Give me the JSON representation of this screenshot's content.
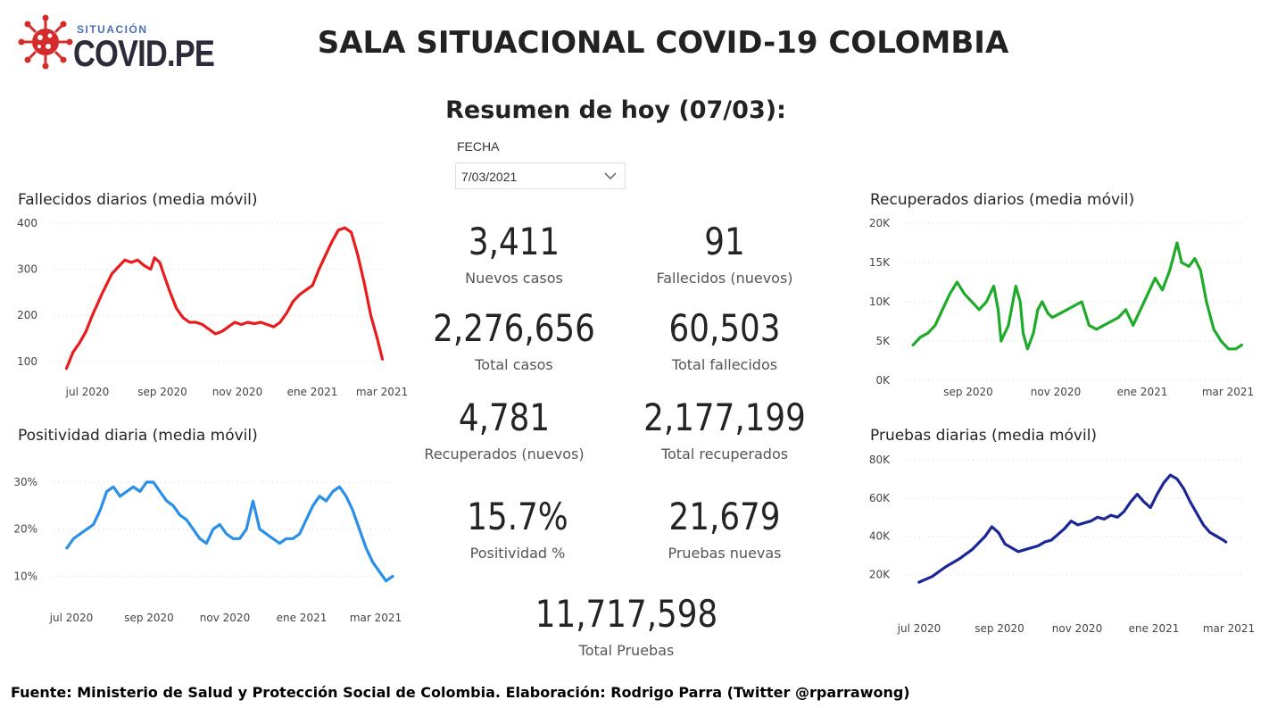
{
  "logo": {
    "sub": "SITUACIÓN",
    "main": "COVID.PE"
  },
  "header": {
    "title": "SALA SITUACIONAL COVID-19 COLOMBIA",
    "subtitle": "Resumen de hoy (07/03):"
  },
  "filter": {
    "label": "FECHA",
    "value": "7/03/2021"
  },
  "kpis": [
    {
      "value": "3,411",
      "label": "Nuevos casos"
    },
    {
      "value": "91",
      "label": "Fallecidos (nuevos)"
    },
    {
      "value": "2,276,656",
      "label": "Total casos"
    },
    {
      "value": "60,503",
      "label": "Total fallecidos"
    },
    {
      "value": "4,781",
      "label": "Recuperados (nuevos)"
    },
    {
      "value": "2,177,199",
      "label": "Total recuperados"
    },
    {
      "value": "15.7%",
      "label": "Positividad %"
    },
    {
      "value": "21,679",
      "label": "Pruebas nuevas"
    },
    {
      "value": "11,717,598",
      "label": "Total Pruebas"
    }
  ],
  "footer": "Fuente: Ministerio de Salud y Protección Social de Colombia. Elaboración: Rodrigo Parra (Twitter @rparrawong)",
  "colors": {
    "fallecidos": "#e81c1c",
    "positividad": "#2a8fe8",
    "recuperados": "#1faa2a",
    "pruebas": "#1b2796"
  },
  "chart_data": [
    {
      "type": "line",
      "title": "Fallecidos diarios (media móvil)",
      "color": "#e81c1c",
      "x_ticks": [
        "jul 2020",
        "sep 2020",
        "nov 2020",
        "ene 2021",
        "mar 2021"
      ],
      "y_ticks": [
        "100",
        "200",
        "300",
        "400"
      ],
      "y_tick_values": [
        100,
        200,
        300,
        400
      ],
      "ylim": [
        90,
        400
      ],
      "xlim": [
        -10,
        245
      ],
      "grid": true,
      "series": [
        {
          "values": [
            [
              0,
              85
            ],
            [
              5,
              120
            ],
            [
              10,
              140
            ],
            [
              15,
              165
            ],
            [
              20,
              200
            ],
            [
              28,
              250
            ],
            [
              35,
              290
            ],
            [
              40,
              305
            ],
            [
              45,
              320
            ],
            [
              50,
              315
            ],
            [
              55,
              320
            ],
            [
              60,
              308
            ],
            [
              65,
              300
            ],
            [
              68,
              325
            ],
            [
              72,
              315
            ],
            [
              75,
              290
            ],
            [
              80,
              250
            ],
            [
              85,
              215
            ],
            [
              90,
              195
            ],
            [
              95,
              185
            ],
            [
              100,
              185
            ],
            [
              105,
              180
            ],
            [
              110,
              170
            ],
            [
              115,
              160
            ],
            [
              120,
              165
            ],
            [
              125,
              175
            ],
            [
              130,
              185
            ],
            [
              135,
              180
            ],
            [
              140,
              185
            ],
            [
              145,
              182
            ],
            [
              150,
              185
            ],
            [
              155,
              180
            ],
            [
              160,
              175
            ],
            [
              165,
              185
            ],
            [
              170,
              205
            ],
            [
              175,
              230
            ],
            [
              180,
              245
            ],
            [
              185,
              255
            ],
            [
              190,
              265
            ],
            [
              195,
              300
            ],
            [
              200,
              330
            ],
            [
              205,
              360
            ],
            [
              210,
              385
            ],
            [
              215,
              390
            ],
            [
              220,
              380
            ],
            [
              225,
              330
            ],
            [
              230,
              270
            ],
            [
              235,
              200
            ],
            [
              240,
              150
            ],
            [
              244,
              105
            ]
          ]
        }
      ]
    },
    {
      "type": "line",
      "title": "Positividad diaria (media móvil)",
      "color": "#2a8fe8",
      "x_ticks": [
        "jul 2020",
        "sep 2020",
        "nov 2020",
        "ene 2021",
        "mar 2021"
      ],
      "y_ticks": [
        "10%",
        "20%",
        "30%"
      ],
      "y_tick_values": [
        10,
        20,
        30
      ],
      "ylim": [
        8,
        30
      ],
      "xlim": [
        -10,
        245
      ],
      "grid": true,
      "series": [
        {
          "values": [
            [
              0,
              16
            ],
            [
              5,
              18
            ],
            [
              10,
              19
            ],
            [
              15,
              20
            ],
            [
              20,
              21
            ],
            [
              25,
              24
            ],
            [
              30,
              28
            ],
            [
              35,
              29
            ],
            [
              40,
              27
            ],
            [
              45,
              28
            ],
            [
              50,
              29
            ],
            [
              55,
              28
            ],
            [
              60,
              30
            ],
            [
              65,
              30
            ],
            [
              70,
              28
            ],
            [
              75,
              26
            ],
            [
              80,
              25
            ],
            [
              85,
              23
            ],
            [
              90,
              22
            ],
            [
              95,
              20
            ],
            [
              100,
              18
            ],
            [
              105,
              17
            ],
            [
              110,
              20
            ],
            [
              115,
              21
            ],
            [
              120,
              19
            ],
            [
              125,
              18
            ],
            [
              130,
              18
            ],
            [
              135,
              20
            ],
            [
              140,
              26
            ],
            [
              145,
              20
            ],
            [
              150,
              19
            ],
            [
              155,
              18
            ],
            [
              160,
              17
            ],
            [
              165,
              18
            ],
            [
              170,
              18
            ],
            [
              175,
              19
            ],
            [
              180,
              22
            ],
            [
              185,
              25
            ],
            [
              190,
              27
            ],
            [
              195,
              26
            ],
            [
              200,
              28
            ],
            [
              205,
              29
            ],
            [
              210,
              27
            ],
            [
              215,
              24
            ],
            [
              220,
              20
            ],
            [
              225,
              16
            ],
            [
              230,
              13
            ],
            [
              235,
              11
            ],
            [
              240,
              9
            ],
            [
              245,
              10
            ]
          ]
        }
      ]
    },
    {
      "type": "line",
      "title": "Recuperados diarios (media móvil)",
      "color": "#1faa2a",
      "x_ticks": [
        "sep 2020",
        "nov 2020",
        "ene 2021",
        "mar 2021"
      ],
      "y_ticks": [
        "0K",
        "5K",
        "10K",
        "15K",
        "20K"
      ],
      "y_tick_values": [
        0,
        5,
        10,
        15,
        20
      ],
      "ylim": [
        0,
        20
      ],
      "xlim": [
        25,
        255
      ],
      "grid": true,
      "series": [
        {
          "values": [
            [
              30,
              4.5
            ],
            [
              35,
              5.5
            ],
            [
              40,
              6
            ],
            [
              45,
              7
            ],
            [
              50,
              9
            ],
            [
              55,
              11
            ],
            [
              60,
              12.5
            ],
            [
              65,
              11
            ],
            [
              70,
              10
            ],
            [
              75,
              9
            ],
            [
              80,
              10
            ],
            [
              85,
              12
            ],
            [
              88,
              9
            ],
            [
              90,
              5
            ],
            [
              95,
              7
            ],
            [
              100,
              12
            ],
            [
              103,
              10
            ],
            [
              105,
              6
            ],
            [
              108,
              4
            ],
            [
              112,
              6
            ],
            [
              115,
              9
            ],
            [
              118,
              10
            ],
            [
              122,
              8.5
            ],
            [
              125,
              8
            ],
            [
              130,
              8.5
            ],
            [
              135,
              9
            ],
            [
              140,
              9.5
            ],
            [
              145,
              10
            ],
            [
              150,
              7
            ],
            [
              155,
              6.5
            ],
            [
              160,
              7
            ],
            [
              165,
              7.5
            ],
            [
              170,
              8
            ],
            [
              175,
              9
            ],
            [
              180,
              7
            ],
            [
              185,
              9
            ],
            [
              190,
              11
            ],
            [
              195,
              13
            ],
            [
              200,
              11.5
            ],
            [
              205,
              14
            ],
            [
              210,
              17.5
            ],
            [
              213,
              15
            ],
            [
              218,
              14.5
            ],
            [
              222,
              15.5
            ],
            [
              226,
              14
            ],
            [
              230,
              10
            ],
            [
              235,
              6.5
            ],
            [
              240,
              5
            ],
            [
              245,
              4
            ],
            [
              250,
              4
            ],
            [
              254,
              4.5
            ]
          ]
        }
      ]
    },
    {
      "type": "line",
      "title": "Pruebas diarias (media móvil)",
      "color": "#1b2796",
      "x_ticks": [
        "jul 2020",
        "sep 2020",
        "nov 2020",
        "ene 2021",
        "mar 2021"
      ],
      "y_ticks": [
        "20K",
        "40K",
        "60K",
        "80K"
      ],
      "y_tick_values": [
        20,
        40,
        60,
        80
      ],
      "ylim": [
        10,
        80
      ],
      "xlim": [
        -10,
        245
      ],
      "grid": true,
      "series": [
        {
          "values": [
            [
              0,
              16
            ],
            [
              10,
              19
            ],
            [
              20,
              24
            ],
            [
              30,
              28
            ],
            [
              40,
              33
            ],
            [
              50,
              40
            ],
            [
              55,
              45
            ],
            [
              60,
              42
            ],
            [
              65,
              36
            ],
            [
              70,
              34
            ],
            [
              75,
              32
            ],
            [
              80,
              33
            ],
            [
              85,
              34
            ],
            [
              90,
              35
            ],
            [
              95,
              37
            ],
            [
              100,
              38
            ],
            [
              105,
              41
            ],
            [
              110,
              44
            ],
            [
              115,
              48
            ],
            [
              120,
              46
            ],
            [
              125,
              47
            ],
            [
              130,
              48
            ],
            [
              135,
              50
            ],
            [
              140,
              49
            ],
            [
              145,
              51
            ],
            [
              150,
              50
            ],
            [
              155,
              53
            ],
            [
              160,
              58
            ],
            [
              165,
              62
            ],
            [
              170,
              58
            ],
            [
              175,
              55
            ],
            [
              180,
              62
            ],
            [
              185,
              68
            ],
            [
              190,
              72
            ],
            [
              195,
              70
            ],
            [
              200,
              65
            ],
            [
              205,
              58
            ],
            [
              210,
              52
            ],
            [
              215,
              46
            ],
            [
              220,
              42
            ],
            [
              225,
              40
            ],
            [
              230,
              38
            ],
            [
              232,
              37
            ]
          ]
        }
      ]
    }
  ]
}
